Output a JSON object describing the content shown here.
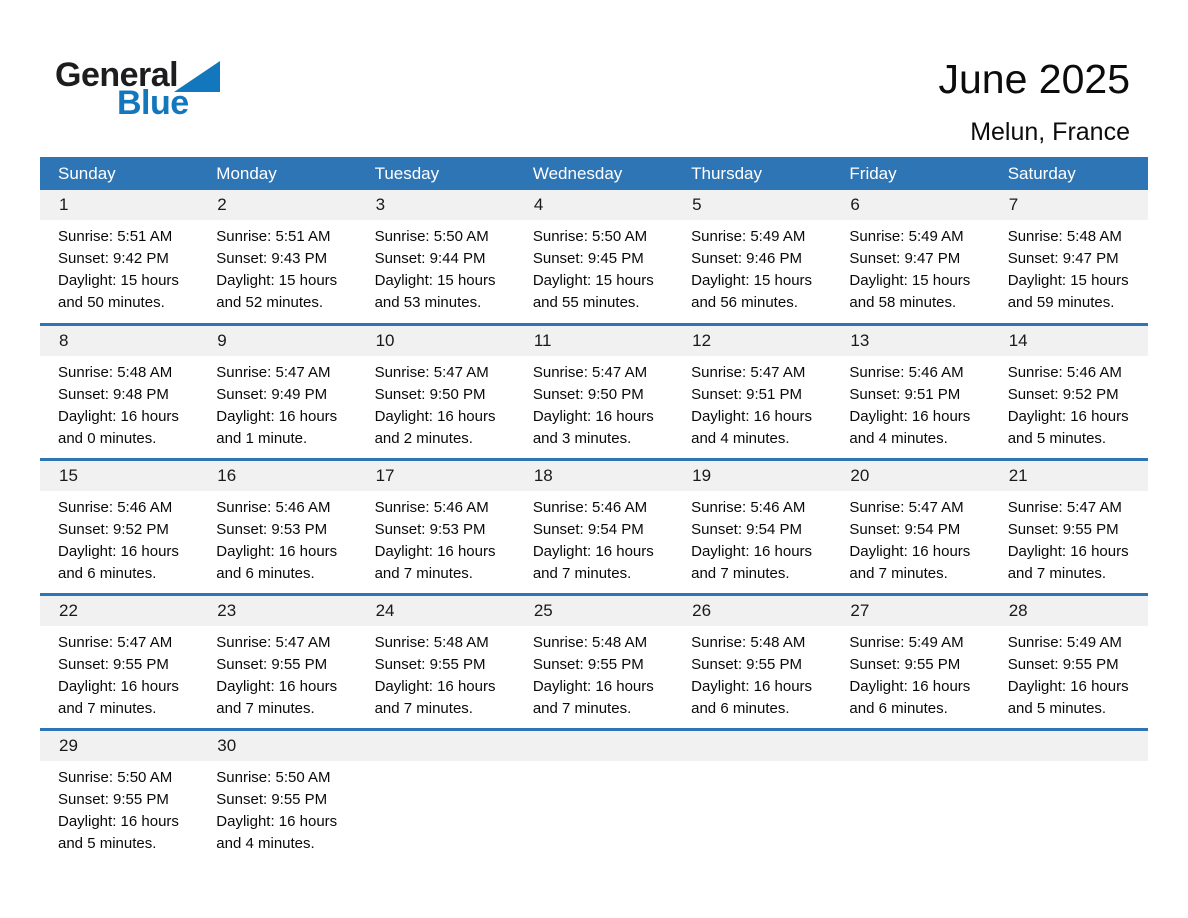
{
  "logo": {
    "general": "General",
    "blue": "Blue"
  },
  "header": {
    "title": "June 2025",
    "subtitle": "Melun, France"
  },
  "colors": {
    "header_bg": "#2E75B6",
    "band_bg": "#F1F1F1",
    "logo_blue": "#1377BD"
  },
  "calendar": {
    "weekday_headers": [
      "Sunday",
      "Monday",
      "Tuesday",
      "Wednesday",
      "Thursday",
      "Friday",
      "Saturday"
    ],
    "weeks": [
      {
        "days": [
          {
            "number": "1",
            "sunrise": "Sunrise: 5:51 AM",
            "sunset": "Sunset: 9:42 PM",
            "daylight1": "Daylight: 15 hours",
            "daylight2": "and 50 minutes."
          },
          {
            "number": "2",
            "sunrise": "Sunrise: 5:51 AM",
            "sunset": "Sunset: 9:43 PM",
            "daylight1": "Daylight: 15 hours",
            "daylight2": "and 52 minutes."
          },
          {
            "number": "3",
            "sunrise": "Sunrise: 5:50 AM",
            "sunset": "Sunset: 9:44 PM",
            "daylight1": "Daylight: 15 hours",
            "daylight2": "and 53 minutes."
          },
          {
            "number": "4",
            "sunrise": "Sunrise: 5:50 AM",
            "sunset": "Sunset: 9:45 PM",
            "daylight1": "Daylight: 15 hours",
            "daylight2": "and 55 minutes."
          },
          {
            "number": "5",
            "sunrise": "Sunrise: 5:49 AM",
            "sunset": "Sunset: 9:46 PM",
            "daylight1": "Daylight: 15 hours",
            "daylight2": "and 56 minutes."
          },
          {
            "number": "6",
            "sunrise": "Sunrise: 5:49 AM",
            "sunset": "Sunset: 9:47 PM",
            "daylight1": "Daylight: 15 hours",
            "daylight2": "and 58 minutes."
          },
          {
            "number": "7",
            "sunrise": "Sunrise: 5:48 AM",
            "sunset": "Sunset: 9:47 PM",
            "daylight1": "Daylight: 15 hours",
            "daylight2": "and 59 minutes."
          }
        ]
      },
      {
        "days": [
          {
            "number": "8",
            "sunrise": "Sunrise: 5:48 AM",
            "sunset": "Sunset: 9:48 PM",
            "daylight1": "Daylight: 16 hours",
            "daylight2": "and 0 minutes."
          },
          {
            "number": "9",
            "sunrise": "Sunrise: 5:47 AM",
            "sunset": "Sunset: 9:49 PM",
            "daylight1": "Daylight: 16 hours",
            "daylight2": "and 1 minute."
          },
          {
            "number": "10",
            "sunrise": "Sunrise: 5:47 AM",
            "sunset": "Sunset: 9:50 PM",
            "daylight1": "Daylight: 16 hours",
            "daylight2": "and 2 minutes."
          },
          {
            "number": "11",
            "sunrise": "Sunrise: 5:47 AM",
            "sunset": "Sunset: 9:50 PM",
            "daylight1": "Daylight: 16 hours",
            "daylight2": "and 3 minutes."
          },
          {
            "number": "12",
            "sunrise": "Sunrise: 5:47 AM",
            "sunset": "Sunset: 9:51 PM",
            "daylight1": "Daylight: 16 hours",
            "daylight2": "and 4 minutes."
          },
          {
            "number": "13",
            "sunrise": "Sunrise: 5:46 AM",
            "sunset": "Sunset: 9:51 PM",
            "daylight1": "Daylight: 16 hours",
            "daylight2": "and 4 minutes."
          },
          {
            "number": "14",
            "sunrise": "Sunrise: 5:46 AM",
            "sunset": "Sunset: 9:52 PM",
            "daylight1": "Daylight: 16 hours",
            "daylight2": "and 5 minutes."
          }
        ]
      },
      {
        "days": [
          {
            "number": "15",
            "sunrise": "Sunrise: 5:46 AM",
            "sunset": "Sunset: 9:52 PM",
            "daylight1": "Daylight: 16 hours",
            "daylight2": "and 6 minutes."
          },
          {
            "number": "16",
            "sunrise": "Sunrise: 5:46 AM",
            "sunset": "Sunset: 9:53 PM",
            "daylight1": "Daylight: 16 hours",
            "daylight2": "and 6 minutes."
          },
          {
            "number": "17",
            "sunrise": "Sunrise: 5:46 AM",
            "sunset": "Sunset: 9:53 PM",
            "daylight1": "Daylight: 16 hours",
            "daylight2": "and 7 minutes."
          },
          {
            "number": "18",
            "sunrise": "Sunrise: 5:46 AM",
            "sunset": "Sunset: 9:54 PM",
            "daylight1": "Daylight: 16 hours",
            "daylight2": "and 7 minutes."
          },
          {
            "number": "19",
            "sunrise": "Sunrise: 5:46 AM",
            "sunset": "Sunset: 9:54 PM",
            "daylight1": "Daylight: 16 hours",
            "daylight2": "and 7 minutes."
          },
          {
            "number": "20",
            "sunrise": "Sunrise: 5:47 AM",
            "sunset": "Sunset: 9:54 PM",
            "daylight1": "Daylight: 16 hours",
            "daylight2": "and 7 minutes."
          },
          {
            "number": "21",
            "sunrise": "Sunrise: 5:47 AM",
            "sunset": "Sunset: 9:55 PM",
            "daylight1": "Daylight: 16 hours",
            "daylight2": "and 7 minutes."
          }
        ]
      },
      {
        "days": [
          {
            "number": "22",
            "sunrise": "Sunrise: 5:47 AM",
            "sunset": "Sunset: 9:55 PM",
            "daylight1": "Daylight: 16 hours",
            "daylight2": "and 7 minutes."
          },
          {
            "number": "23",
            "sunrise": "Sunrise: 5:47 AM",
            "sunset": "Sunset: 9:55 PM",
            "daylight1": "Daylight: 16 hours",
            "daylight2": "and 7 minutes."
          },
          {
            "number": "24",
            "sunrise": "Sunrise: 5:48 AM",
            "sunset": "Sunset: 9:55 PM",
            "daylight1": "Daylight: 16 hours",
            "daylight2": "and 7 minutes."
          },
          {
            "number": "25",
            "sunrise": "Sunrise: 5:48 AM",
            "sunset": "Sunset: 9:55 PM",
            "daylight1": "Daylight: 16 hours",
            "daylight2": "and 7 minutes."
          },
          {
            "number": "26",
            "sunrise": "Sunrise: 5:48 AM",
            "sunset": "Sunset: 9:55 PM",
            "daylight1": "Daylight: 16 hours",
            "daylight2": "and 6 minutes."
          },
          {
            "number": "27",
            "sunrise": "Sunrise: 5:49 AM",
            "sunset": "Sunset: 9:55 PM",
            "daylight1": "Daylight: 16 hours",
            "daylight2": "and 6 minutes."
          },
          {
            "number": "28",
            "sunrise": "Sunrise: 5:49 AM",
            "sunset": "Sunset: 9:55 PM",
            "daylight1": "Daylight: 16 hours",
            "daylight2": "and 5 minutes."
          }
        ]
      },
      {
        "days": [
          {
            "number": "29",
            "sunrise": "Sunrise: 5:50 AM",
            "sunset": "Sunset: 9:55 PM",
            "daylight1": "Daylight: 16 hours",
            "daylight2": "and 5 minutes."
          },
          {
            "number": "30",
            "sunrise": "Sunrise: 5:50 AM",
            "sunset": "Sunset: 9:55 PM",
            "daylight1": "Daylight: 16 hours",
            "daylight2": "and 4 minutes."
          },
          {},
          {},
          {},
          {},
          {}
        ]
      }
    ]
  }
}
